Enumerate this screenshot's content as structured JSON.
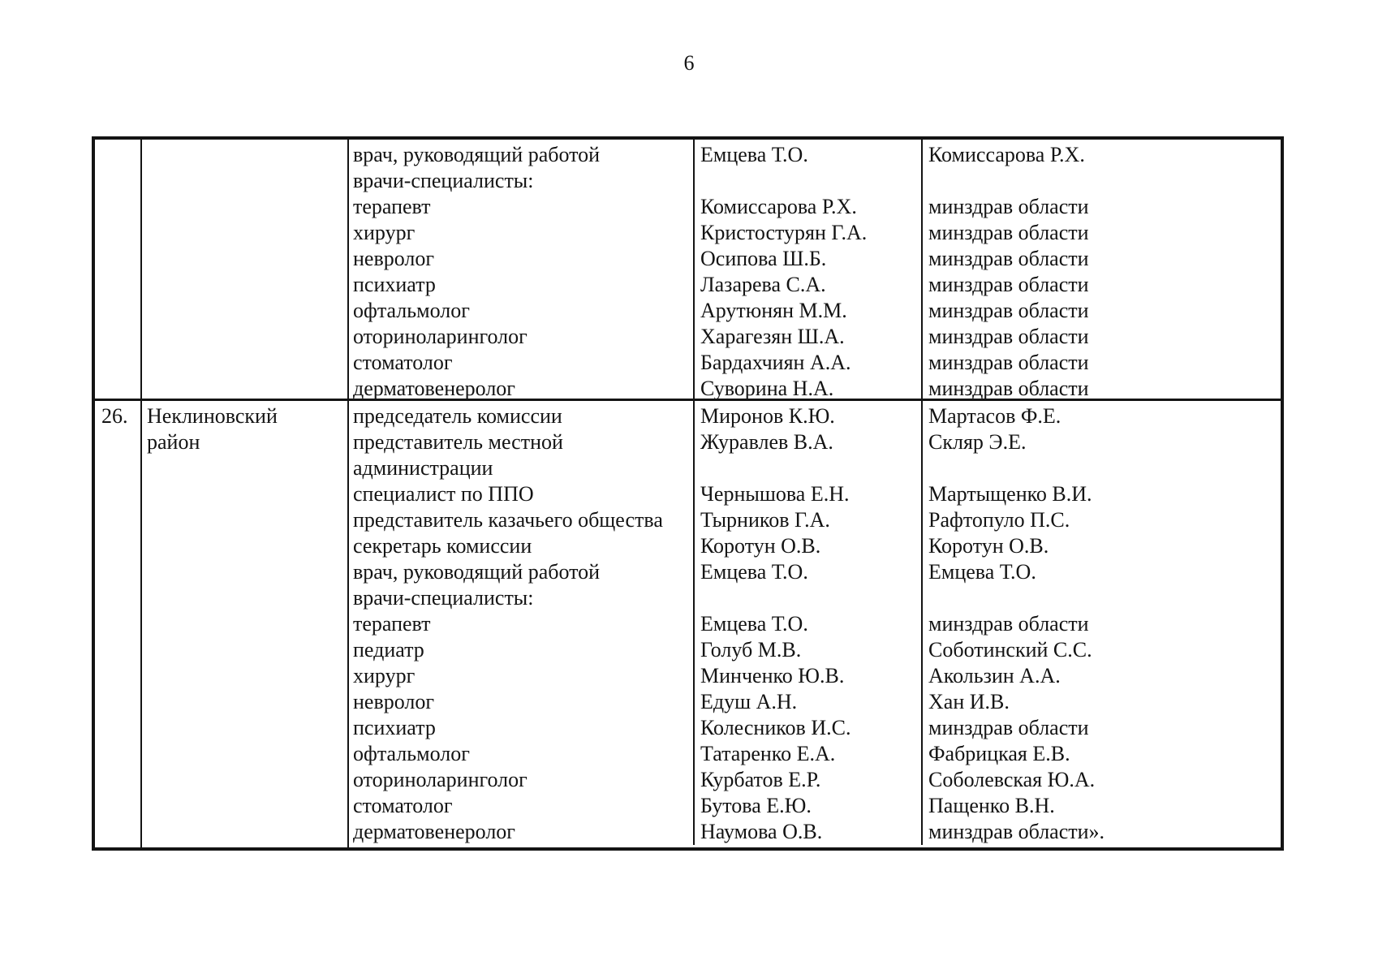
{
  "page_number": "6",
  "colors": {
    "text": "#141414",
    "background": "#ffffff",
    "table_border": "#141414"
  },
  "table": {
    "rows": [
      {
        "num": "",
        "district": "",
        "entries": [
          {
            "position": "врач, руководящий работой",
            "name": "Емцева Т.О.",
            "appointed_by": "Комиссарова Р.Х."
          },
          {
            "position": "врачи-специалисты:",
            "name": "",
            "appointed_by": ""
          },
          {
            "position": "терапевт",
            "name": "Комиссарова Р.Х.",
            "appointed_by": "минздрав области"
          },
          {
            "position": "хирург",
            "name": "Кристостурян Г.А.",
            "appointed_by": "минздрав области"
          },
          {
            "position": "невролог",
            "name": "Осипова Ш.Б.",
            "appointed_by": "минздрав области"
          },
          {
            "position": "психиатр",
            "name": "Лазарева С.А.",
            "appointed_by": "минздрав области"
          },
          {
            "position": "офтальмолог",
            "name": "Арутюнян М.М.",
            "appointed_by": "минздрав области"
          },
          {
            "position": "оториноларинголог",
            "name": "Харагезян Ш.А.",
            "appointed_by": "минздрав области"
          },
          {
            "position": "стоматолог",
            "name": "Бардахчиян А.А.",
            "appointed_by": "минздрав области"
          },
          {
            "position": "дерматовенеролог",
            "name": "Суворина Н.А.",
            "appointed_by": "минздрав области"
          }
        ]
      },
      {
        "num": "26.",
        "district": "Неклиновский\nрайон",
        "entries": [
          {
            "position": "председатель комиссии",
            "name": "Миронов К.Ю.",
            "appointed_by": "Мартасов Ф.Е."
          },
          {
            "position": "представитель местной\nадминистрации",
            "name": "Журавлев В.А.",
            "appointed_by": "Скляр Э.Е."
          },
          {
            "position": "специалист по ППО",
            "name": "Чернышова Е.Н.",
            "appointed_by": "Мартыщенко В.И."
          },
          {
            "position": "представитель казачьего общества",
            "name": "Тырников Г.А.",
            "appointed_by": "Рафтопуло П.С."
          },
          {
            "position": "секретарь комиссии",
            "name": "Коротун О.В.",
            "appointed_by": "Коротун О.В."
          },
          {
            "position": "врач, руководящий работой",
            "name": "Емцева Т.О.",
            "appointed_by": "Емцева Т.О."
          },
          {
            "position": "врачи-специалисты:",
            "name": "",
            "appointed_by": ""
          },
          {
            "position": "терапевт",
            "name": "Емцева Т.О.",
            "appointed_by": "минздрав области"
          },
          {
            "position": "педиатр",
            "name": "Голуб М.В.",
            "appointed_by": "Соботинский С.С."
          },
          {
            "position": "хирург",
            "name": "Минченко Ю.В.",
            "appointed_by": "Акользин А.А."
          },
          {
            "position": "невролог",
            "name": "Едуш А.Н.",
            "appointed_by": "Хан И.В."
          },
          {
            "position": "психиатр",
            "name": "Колесников И.С.",
            "appointed_by": "минздрав области"
          },
          {
            "position": "офтальмолог",
            "name": "Татаренко Е.А.",
            "appointed_by": "Фабрицкая Е.В."
          },
          {
            "position": "оториноларинголог",
            "name": "Курбатов Е.Р.",
            "appointed_by": "Соболевская Ю.А."
          },
          {
            "position": "стоматолог",
            "name": "Бутова Е.Ю.",
            "appointed_by": "Пащенко В.Н."
          },
          {
            "position": "дерматовенеролог",
            "name": "Наумова О.В.",
            "appointed_by": "минздрав области»."
          }
        ]
      }
    ]
  }
}
